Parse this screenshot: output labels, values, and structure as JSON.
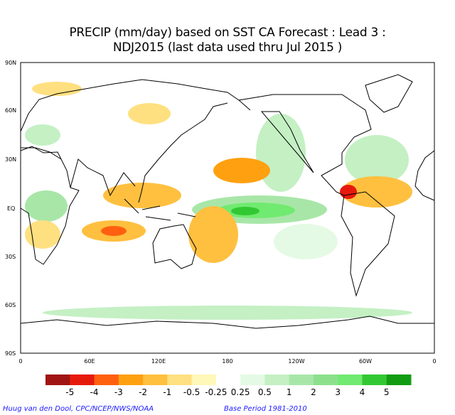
{
  "title": {
    "line1": "PRECIP (mm/day) based on SST CA Forecast : Lead 3 :",
    "line2": "NDJ2015 (last data used thru Jul 2015 )"
  },
  "axes": {
    "lat_labels": [
      "90N",
      "60N",
      "30N",
      "EQ",
      "30S",
      "60S",
      "90S"
    ],
    "lon_labels": [
      "0",
      "60E",
      "120E",
      "180",
      "120W",
      "60W",
      "0"
    ]
  },
  "colorbar": {
    "labels": [
      "-5",
      "-4",
      "-3",
      "-2",
      "-1",
      "-0.5",
      "-0.25",
      "0.25",
      "0.5",
      "1",
      "2",
      "3",
      "4",
      "5"
    ],
    "colors": [
      "#a01414",
      "#e61a0c",
      "#ff6010",
      "#ffa010",
      "#ffc040",
      "#ffe080",
      "#fff8b8",
      "#ffffff",
      "#e4fae4",
      "#c4f0c4",
      "#a8e6a8",
      "#8ce08c",
      "#70ea70",
      "#32c832",
      "#129c12"
    ]
  },
  "footer": {
    "credit": "Huug van den Dool, CPC/NCEP/NWS/NOAA",
    "base_period": "Base Period 1981-2010"
  }
}
